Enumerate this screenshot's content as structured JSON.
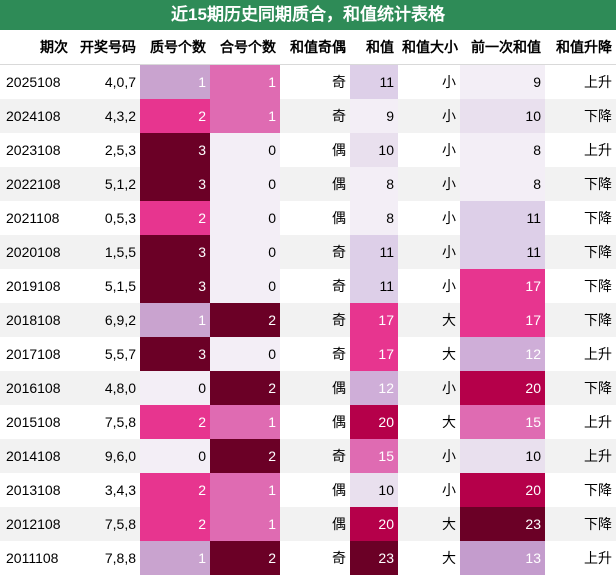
{
  "title": "近15期历史同期质合，和值统计表格",
  "columns": [
    "期次",
    "开奖号码",
    "质号个数",
    "合号个数",
    "和值奇偶",
    "和值",
    "和值大小",
    "前一次和值",
    "和值升降"
  ],
  "rows": [
    [
      "2025108",
      "4,0,7",
      "1",
      "1",
      "奇",
      "11",
      "小",
      "9",
      "上升"
    ],
    [
      "2024108",
      "4,3,2",
      "2",
      "1",
      "奇",
      "9",
      "小",
      "10",
      "下降"
    ],
    [
      "2023108",
      "2,5,3",
      "3",
      "0",
      "偶",
      "10",
      "小",
      "8",
      "上升"
    ],
    [
      "2022108",
      "5,1,2",
      "3",
      "0",
      "偶",
      "8",
      "小",
      "8",
      "下降"
    ],
    [
      "2021108",
      "0,5,3",
      "2",
      "0",
      "偶",
      "8",
      "小",
      "11",
      "下降"
    ],
    [
      "2020108",
      "1,5,5",
      "3",
      "0",
      "奇",
      "11",
      "小",
      "11",
      "下降"
    ],
    [
      "2019108",
      "5,1,5",
      "3",
      "0",
      "奇",
      "11",
      "小",
      "17",
      "下降"
    ],
    [
      "2018108",
      "6,9,2",
      "1",
      "2",
      "奇",
      "17",
      "大",
      "17",
      "下降"
    ],
    [
      "2017108",
      "5,5,7",
      "3",
      "0",
      "奇",
      "17",
      "大",
      "12",
      "上升"
    ],
    [
      "2016108",
      "4,8,0",
      "0",
      "2",
      "偶",
      "12",
      "小",
      "20",
      "下降"
    ],
    [
      "2015108",
      "7,5,8",
      "2",
      "1",
      "偶",
      "20",
      "大",
      "15",
      "上升"
    ],
    [
      "2014108",
      "9,6,0",
      "0",
      "2",
      "奇",
      "15",
      "小",
      "10",
      "上升"
    ],
    [
      "2013108",
      "3,4,3",
      "2",
      "1",
      "偶",
      "10",
      "小",
      "20",
      "下降"
    ],
    [
      "2012108",
      "7,5,8",
      "2",
      "1",
      "偶",
      "20",
      "大",
      "23",
      "下降"
    ],
    [
      "2011108",
      "7,8,8",
      "1",
      "2",
      "奇",
      "23",
      "大",
      "13",
      "上升"
    ]
  ],
  "heat": {
    "zhi": {
      "0": "#f3eef6",
      "1": "#c9a3cf",
      "2": "#e7358f",
      "3": "#6b0026"
    },
    "he": {
      "0": "#f3eef6",
      "1": "#df6bb2",
      "2": "#6b0026"
    },
    "sum": {
      "8": "#f3eef6",
      "9": "#f3eef6",
      "10": "#e9e0ee",
      "11": "#ddcfe8",
      "12": "#cfaed8",
      "13": "#c49ccd",
      "15": "#df6bb2",
      "17": "#e7358f",
      "20": "#b5004a",
      "23": "#6b0026"
    }
  }
}
